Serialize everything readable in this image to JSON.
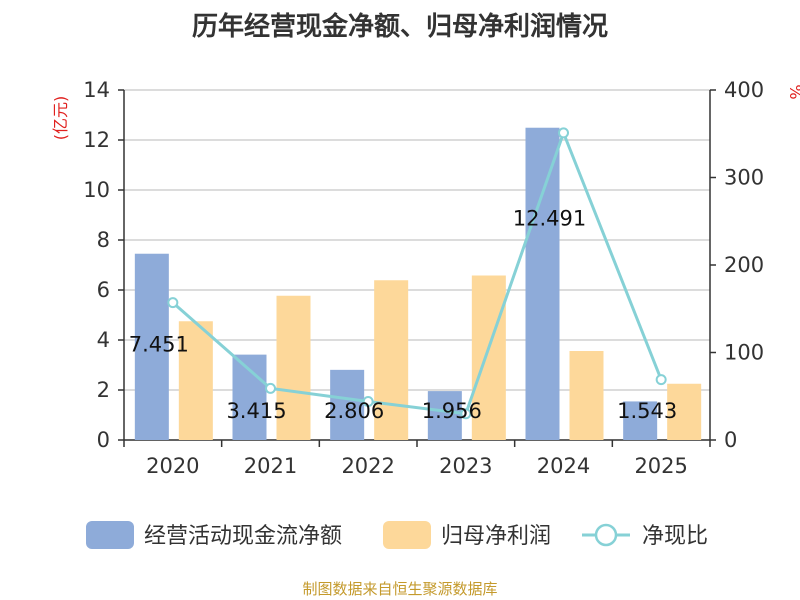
{
  "title": "历年经营现金净额、归母净利润情况",
  "source": "制图数据来自恒生聚源数据库",
  "colors": {
    "cashflow": "#8eabd9",
    "profit": "#fdd89a",
    "ratio": "#86d1d6",
    "axis": "#333333",
    "grid": "#c8c8c8",
    "unit": "#e0201e"
  },
  "chart_data": {
    "type": "bar",
    "categories": [
      "2020",
      "2021",
      "2022",
      "2023",
      "2024",
      "2025"
    ],
    "series": [
      {
        "name": "经营活动现金流净额",
        "type": "bar",
        "axis": "left",
        "values": [
          7.451,
          3.415,
          2.806,
          1.956,
          12.491,
          1.543
        ],
        "labels": [
          "7.451",
          "3.415",
          "2.806",
          "1.956",
          "12.491",
          "1.543"
        ]
      },
      {
        "name": "归母净利润",
        "type": "bar",
        "axis": "left",
        "values": [
          4.75,
          5.77,
          6.39,
          6.58,
          3.56,
          2.25
        ]
      },
      {
        "name": "净现比",
        "type": "line",
        "axis": "right",
        "values": [
          157,
          59,
          44,
          30,
          351,
          69
        ]
      }
    ],
    "yleft": {
      "label": "(亿元)",
      "ylim": [
        0,
        14
      ],
      "ticks": [
        0,
        2,
        4,
        6,
        8,
        10,
        12,
        14
      ]
    },
    "yright": {
      "label": "%",
      "ylim": [
        0,
        400
      ],
      "ticks": [
        0,
        100,
        200,
        300,
        400
      ]
    },
    "grid": true,
    "legend_position": "bottom"
  }
}
